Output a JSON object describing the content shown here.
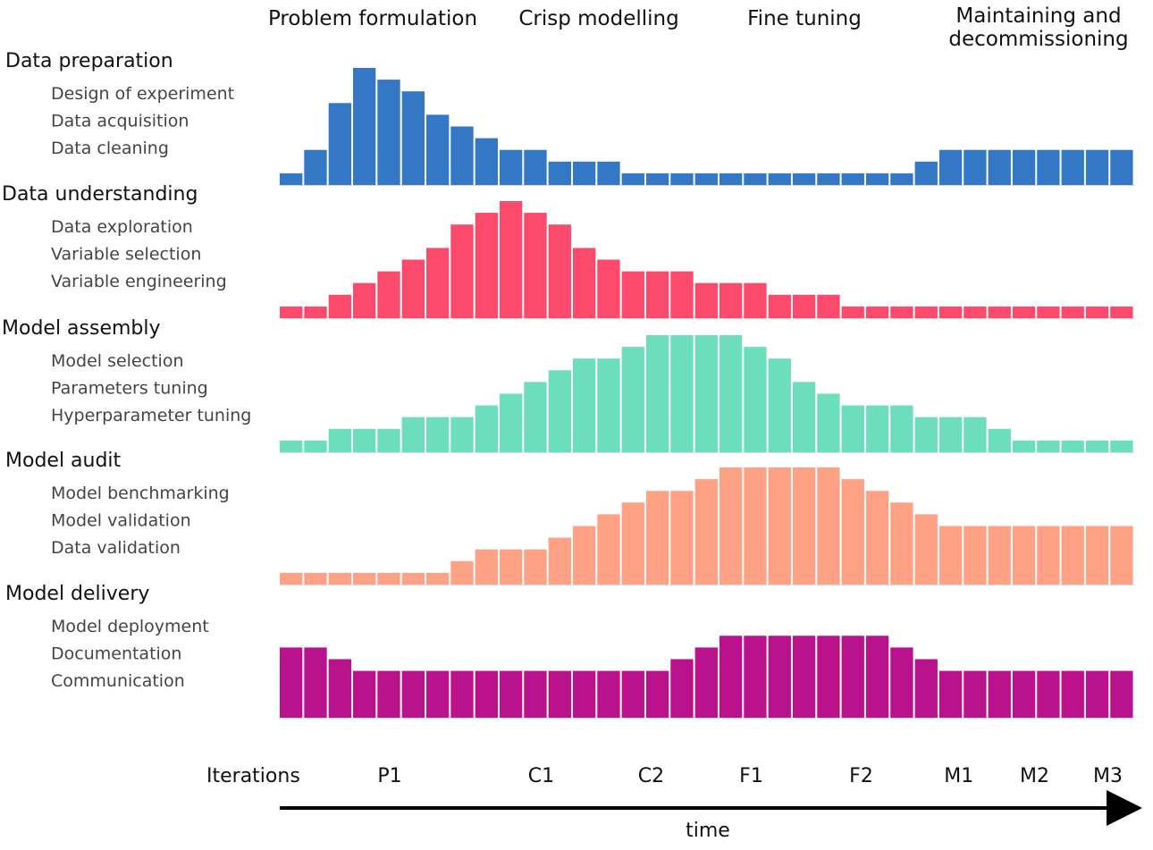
{
  "chart_data": {
    "type": "bar",
    "phases": [
      "Problem formulation",
      "Crisp modelling",
      "Fine tuning",
      "Maintaining and decommissioning"
    ],
    "iteration_title": "Iterations",
    "iterations": [
      "P1",
      "C1",
      "C2",
      "F1",
      "F2",
      "M1",
      "M2",
      "M3"
    ],
    "iteration_positions": [
      4.5,
      10.7,
      15.2,
      19.3,
      23.8,
      27.8,
      30.9,
      33.9
    ],
    "time_label": "time",
    "series": [
      {
        "name": "Data preparation",
        "items": [
          "Design of experiment",
          "Data acquisition",
          "Data cleaning"
        ],
        "color": "#3478c5",
        "values": [
          1,
          3,
          7,
          10,
          9,
          8,
          6,
          5,
          4,
          3,
          3,
          2,
          2,
          2,
          1,
          1,
          1,
          1,
          1,
          1,
          1,
          1,
          1,
          1,
          1,
          1,
          2,
          3,
          3,
          3,
          3,
          3,
          3,
          3,
          3
        ]
      },
      {
        "name": "Data understanding",
        "items": [
          "Data exploration",
          "Variable selection",
          "Variable engineering"
        ],
        "color": "#fb4a6c",
        "values": [
          1,
          1,
          2,
          3,
          4,
          5,
          6,
          8,
          9,
          10,
          9,
          8,
          6,
          5,
          4,
          4,
          4,
          3,
          3,
          3,
          2,
          2,
          2,
          1,
          1,
          1,
          1,
          1,
          1,
          1,
          1,
          1,
          1,
          1,
          1
        ]
      },
      {
        "name": "Model assembly",
        "items": [
          "Model selection",
          "Parameters tuning",
          "Hyperparameter tuning"
        ],
        "color": "#6cdebb",
        "values": [
          1,
          1,
          2,
          2,
          2,
          3,
          3,
          3,
          4,
          5,
          6,
          7,
          8,
          8,
          9,
          10,
          10,
          10,
          10,
          9,
          8,
          6,
          5,
          4,
          4,
          4,
          3,
          3,
          3,
          2,
          1,
          1,
          1,
          1,
          1
        ]
      },
      {
        "name": "Model audit",
        "items": [
          "Model benchmarking",
          "Model validation",
          "Data validation"
        ],
        "color": "#fea185",
        "values": [
          1,
          1,
          1,
          1,
          1,
          1,
          1,
          2,
          3,
          3,
          3,
          4,
          5,
          6,
          7,
          8,
          8,
          9,
          10,
          10,
          10,
          10,
          10,
          9,
          8,
          7,
          6,
          5,
          5,
          5,
          5,
          5,
          5,
          5,
          5
        ]
      },
      {
        "name": "Model delivery",
        "items": [
          "Model deployment",
          "Documentation",
          "Communication"
        ],
        "color": "#ba128c",
        "values": [
          6,
          6,
          5,
          4,
          4,
          4,
          4,
          4,
          4,
          4,
          4,
          4,
          4,
          4,
          4,
          4,
          5,
          6,
          7,
          7,
          7,
          7,
          7,
          7,
          7,
          6,
          5,
          4,
          4,
          4,
          4,
          4,
          4,
          4,
          4
        ]
      }
    ]
  }
}
